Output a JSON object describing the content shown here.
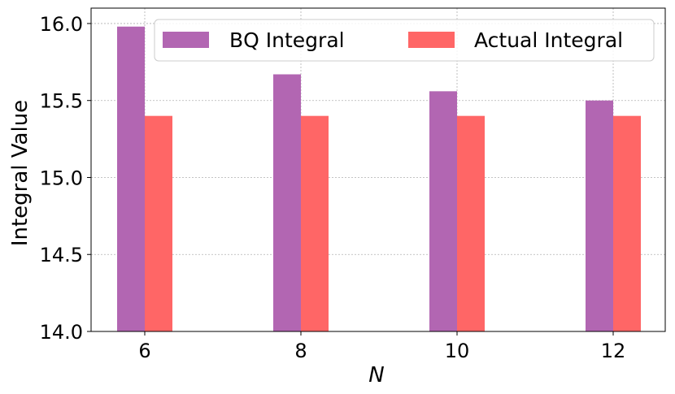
{
  "chart_data": {
    "type": "bar",
    "title": "",
    "xlabel": "N",
    "ylabel": "Integral Value",
    "categories": [
      "6",
      "8",
      "10",
      "12"
    ],
    "ylim": [
      14.0,
      16.1
    ],
    "yticks": [
      14.0,
      14.5,
      15.0,
      15.5,
      16.0
    ],
    "ytick_labels": [
      "14.0",
      "14.5",
      "15.0",
      "15.5",
      "16.0"
    ],
    "grid": true,
    "legend_position": "top-right",
    "series": [
      {
        "name": "BQ Integral",
        "values": [
          15.98,
          15.67,
          15.56,
          15.5
        ],
        "color": "#b266b2"
      },
      {
        "name": "Actual Integral",
        "values": [
          15.4,
          15.4,
          15.4,
          15.4
        ],
        "color": "#ff6666"
      }
    ]
  }
}
